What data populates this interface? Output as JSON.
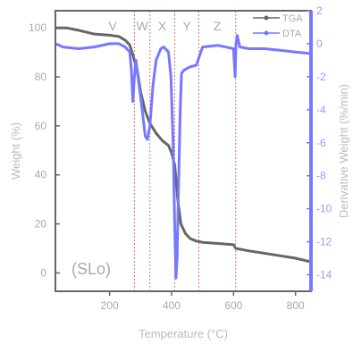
{
  "chart_data": {
    "type": "line",
    "xlabel": "Temperature (°C)",
    "ylabel": "Weight (%)",
    "y2label": "Derivative Weight (%/min)",
    "xlim": [
      25,
      850
    ],
    "ylim": [
      -7.5,
      107
    ],
    "y2lim": [
      -15,
      2
    ],
    "x_ticks": [
      200,
      400,
      600,
      800
    ],
    "y_ticks": [
      0,
      20,
      40,
      60,
      80,
      100
    ],
    "y2_ticks": [
      2,
      0,
      -2,
      -4,
      -6,
      -8,
      -10,
      -12,
      -14
    ],
    "annotation": "(SLo)",
    "legend_position": "top-right",
    "zones": [
      {
        "label": "V",
        "x_start": 25,
        "x_end": 280
      },
      {
        "label": "W",
        "x_start": 280,
        "x_end": 330
      },
      {
        "label": "X",
        "x_start": 330,
        "x_end": 410
      },
      {
        "label": "Y",
        "x_start": 410,
        "x_end": 488
      },
      {
        "label": "Z",
        "x_start": 488,
        "x_end": 607
      }
    ],
    "boundaries": [
      280,
      330,
      410,
      488,
      607
    ],
    "colors": {
      "TGA": "#666666",
      "DTA": "#7777ff",
      "boundary": "#e07070"
    },
    "series": [
      {
        "name": "TGA",
        "axis": "left",
        "points": [
          [
            25,
            100
          ],
          [
            60,
            100
          ],
          [
            100,
            99
          ],
          [
            150,
            97.5
          ],
          [
            200,
            97
          ],
          [
            230,
            96.5
          ],
          [
            250,
            95
          ],
          [
            265,
            93
          ],
          [
            275,
            89
          ],
          [
            290,
            82
          ],
          [
            300,
            74
          ],
          [
            315,
            66
          ],
          [
            330,
            61
          ],
          [
            350,
            57
          ],
          [
            370,
            54
          ],
          [
            390,
            52
          ],
          [
            400,
            49
          ],
          [
            410,
            44
          ],
          [
            420,
            30
          ],
          [
            430,
            20
          ],
          [
            445,
            16
          ],
          [
            460,
            14
          ],
          [
            480,
            13
          ],
          [
            500,
            12.5
          ],
          [
            550,
            12
          ],
          [
            600,
            11.5
          ],
          [
            607,
            10
          ],
          [
            650,
            9
          ],
          [
            700,
            8
          ],
          [
            750,
            7
          ],
          [
            800,
            6
          ],
          [
            850,
            4.5
          ]
        ]
      },
      {
        "name": "DTA",
        "axis": "right",
        "points": [
          [
            25,
            0
          ],
          [
            50,
            -0.2
          ],
          [
            100,
            -0.3
          ],
          [
            150,
            -0.2
          ],
          [
            200,
            0
          ],
          [
            230,
            0
          ],
          [
            250,
            -0.2
          ],
          [
            265,
            -0.5
          ],
          [
            270,
            -1.5
          ],
          [
            275,
            -3.5
          ],
          [
            280,
            -2
          ],
          [
            285,
            -1
          ],
          [
            295,
            -2.5
          ],
          [
            305,
            -4
          ],
          [
            315,
            -5.6
          ],
          [
            322,
            -5.8
          ],
          [
            330,
            -5
          ],
          [
            340,
            -2.5
          ],
          [
            350,
            -1
          ],
          [
            365,
            -0.3
          ],
          [
            375,
            -0.2
          ],
          [
            390,
            -0.5
          ],
          [
            398,
            -2
          ],
          [
            405,
            -6
          ],
          [
            410,
            -11
          ],
          [
            414,
            -14.2
          ],
          [
            418,
            -13
          ],
          [
            422,
            -9
          ],
          [
            428,
            -4
          ],
          [
            432,
            -1.8
          ],
          [
            440,
            -1.6
          ],
          [
            460,
            -1.4
          ],
          [
            480,
            -1.3
          ],
          [
            500,
            -0.2
          ],
          [
            550,
            -0.1
          ],
          [
            600,
            -0.3
          ],
          [
            605,
            -2
          ],
          [
            608,
            0
          ],
          [
            612,
            0.5
          ],
          [
            620,
            -0.2
          ],
          [
            650,
            -0.3
          ],
          [
            700,
            -0.3
          ],
          [
            750,
            -0.4
          ],
          [
            800,
            -0.5
          ],
          [
            850,
            -0.6
          ]
        ]
      }
    ]
  }
}
